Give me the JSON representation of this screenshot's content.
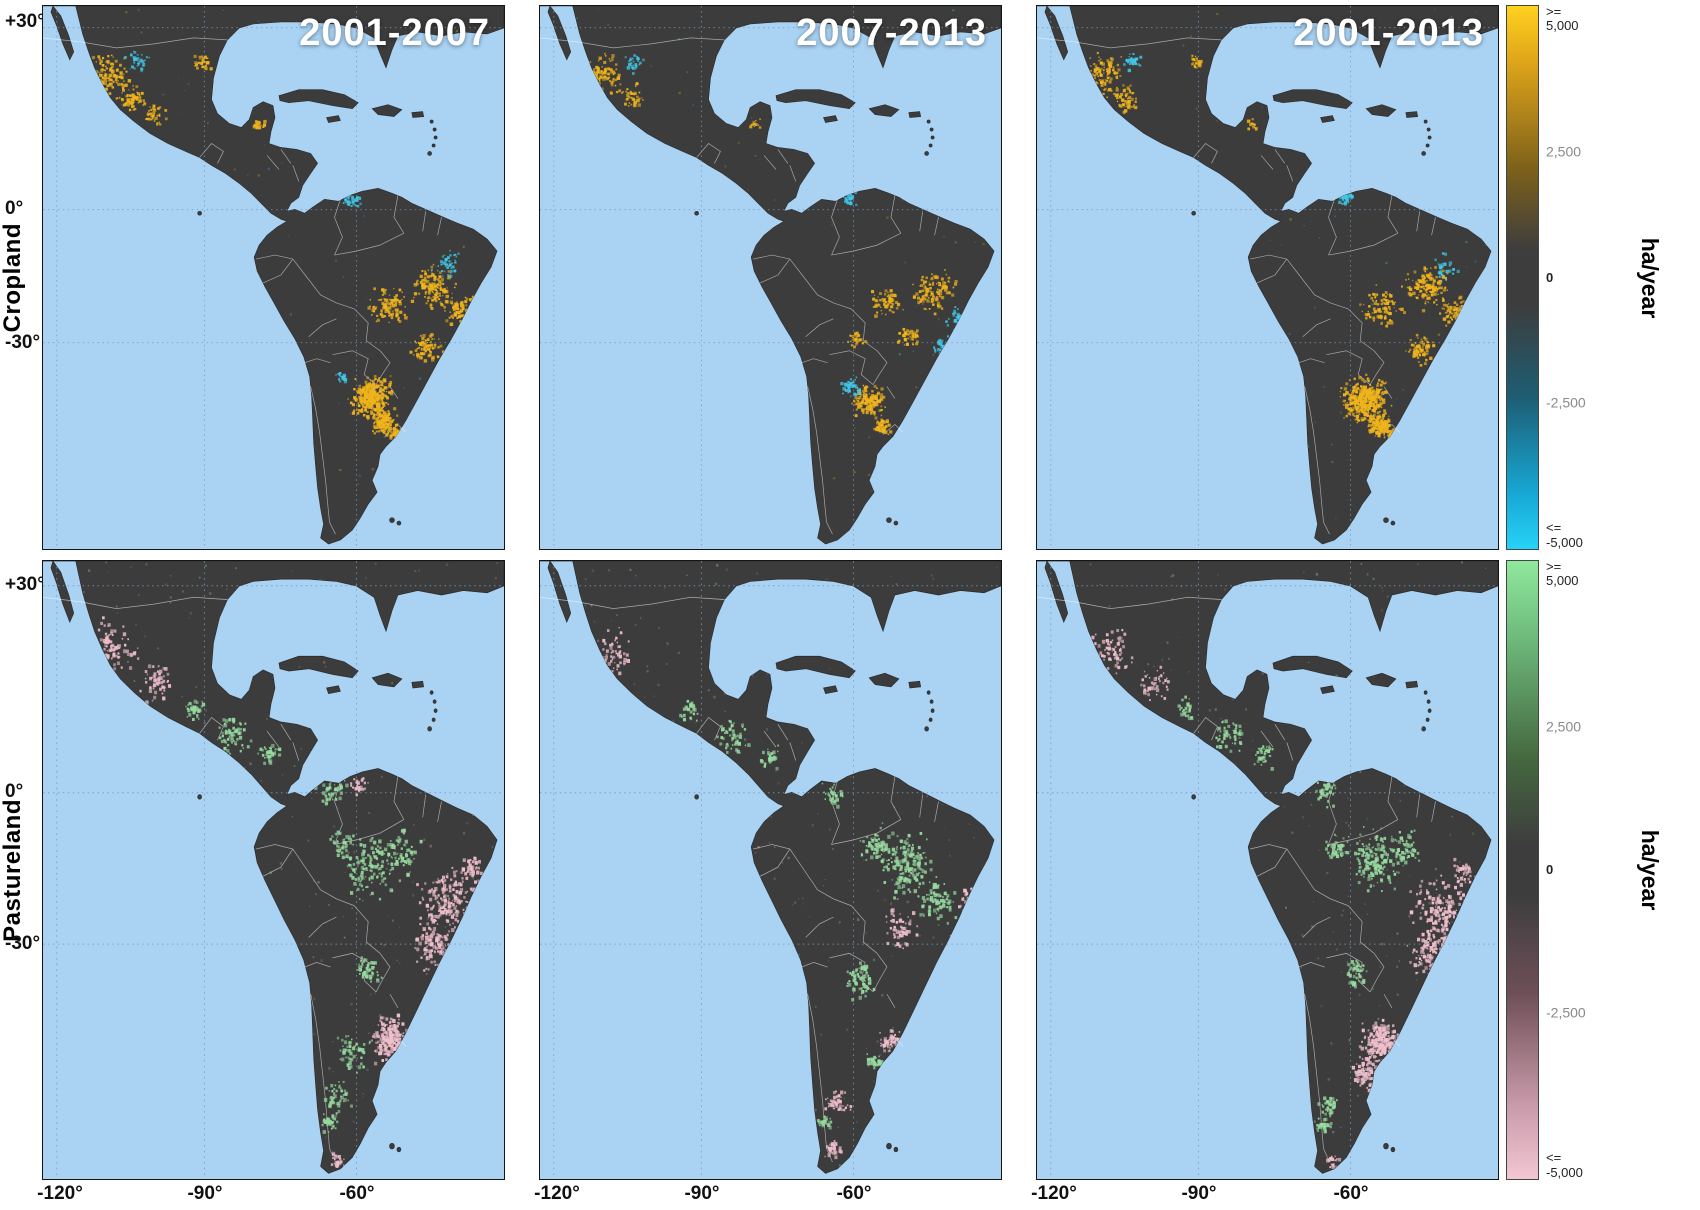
{
  "figure": {
    "rows": [
      {
        "label": "Cropland"
      },
      {
        "label": "Pastureland"
      }
    ],
    "col_titles": [
      "2001-2007",
      "2007-2013",
      "2001-2013"
    ],
    "lat_ticks": [
      "+30°",
      "0°",
      "-30°"
    ],
    "lon_ticks": [
      "-120°",
      "-90°",
      "-60°"
    ]
  },
  "colorbars": [
    {
      "row": "Cropland",
      "unit": "ha/year",
      "ticks": [
        ">=\n5,000",
        "2,500",
        "0",
        "-2,500",
        "<=\n-5,000"
      ],
      "gradient": [
        {
          "c": "#ffd21f",
          "p": 0
        },
        {
          "c": "#e0a61a",
          "p": 0.1
        },
        {
          "c": "#7d611a",
          "p": 0.3
        },
        {
          "c": "#3d3d3d",
          "p": 0.45
        },
        {
          "c": "#3d3d3d",
          "p": 0.55
        },
        {
          "c": "#1e5d73",
          "p": 0.72
        },
        {
          "c": "#17a9d6",
          "p": 0.9
        },
        {
          "c": "#27d2f7",
          "p": 1
        }
      ]
    },
    {
      "row": "Pastureland",
      "unit": "ha/year",
      "ticks": [
        ">=\n5,000",
        "2,500",
        "0",
        "-2,500",
        "<=\n-5,000"
      ],
      "gradient": [
        {
          "c": "#8fe89c",
          "p": 0
        },
        {
          "c": "#6fbc7d",
          "p": 0.12
        },
        {
          "c": "#44683f",
          "p": 0.32
        },
        {
          "c": "#3d3d3d",
          "p": 0.46
        },
        {
          "c": "#3d3d3d",
          "p": 0.54
        },
        {
          "c": "#6e4f58",
          "p": 0.7
        },
        {
          "c": "#c99aa9",
          "p": 0.88
        },
        {
          "c": "#f3c6d4",
          "p": 1
        }
      ]
    }
  ],
  "map": {
    "ocean": "#a9d2f3",
    "land": "#3c3c3c",
    "border_color": "#ffffff",
    "graticule_color": "#7898be",
    "colors": {
      "cg": "#f0b41c",
      "cl": "#41c7e8",
      "pg": "#97dba0",
      "pl": "#f0bfcd"
    }
  },
  "panels": [
    {
      "row": "Cropland",
      "period": "2001-2007",
      "seed": 1,
      "noise": 160,
      "hotspots": [
        [
          65,
          68,
          26,
          130,
          "cg"
        ],
        [
          88,
          92,
          18,
          70,
          "cg"
        ],
        [
          112,
          108,
          14,
          40,
          "cg"
        ],
        [
          95,
          55,
          14,
          35,
          "cl"
        ],
        [
          160,
          55,
          12,
          30,
          "cg"
        ],
        [
          216,
          118,
          9,
          18,
          "cg"
        ],
        [
          310,
          192,
          12,
          45,
          "cl"
        ],
        [
          348,
          300,
          26,
          110,
          "cg"
        ],
        [
          392,
          282,
          28,
          150,
          "cg"
        ],
        [
          420,
          305,
          20,
          80,
          "cg"
        ],
        [
          386,
          342,
          18,
          80,
          "cg"
        ],
        [
          330,
          392,
          26,
          380,
          "cg"
        ],
        [
          342,
          416,
          16,
          160,
          "cg"
        ],
        [
          356,
          428,
          10,
          50,
          "cg"
        ],
        [
          300,
          372,
          8,
          18,
          "cl"
        ],
        [
          408,
          258,
          22,
          40,
          "cl"
        ]
      ]
    },
    {
      "row": "Cropland",
      "period": "2007-2013",
      "seed": 2,
      "noise": 140,
      "hotspots": [
        [
          64,
          66,
          24,
          75,
          "cg"
        ],
        [
          90,
          90,
          16,
          40,
          "cg"
        ],
        [
          95,
          55,
          13,
          30,
          "cl"
        ],
        [
          216,
          118,
          8,
          12,
          "cg"
        ],
        [
          310,
          192,
          10,
          25,
          "cl"
        ],
        [
          348,
          296,
          20,
          65,
          "cg"
        ],
        [
          395,
          285,
          26,
          110,
          "cg"
        ],
        [
          424,
          315,
          18,
          70,
          "cl"
        ],
        [
          408,
          340,
          16,
          45,
          "cl"
        ],
        [
          372,
          330,
          14,
          40,
          "cg"
        ],
        [
          318,
          334,
          10,
          30,
          "cg"
        ],
        [
          330,
          395,
          22,
          140,
          "cg"
        ],
        [
          312,
          380,
          14,
          45,
          "cl"
        ],
        [
          344,
          420,
          12,
          55,
          "cg"
        ]
      ]
    },
    {
      "row": "Cropland",
      "period": "2001-2013",
      "seed": 3,
      "noise": 150,
      "hotspots": [
        [
          65,
          68,
          26,
          115,
          "cg"
        ],
        [
          88,
          92,
          18,
          60,
          "cg"
        ],
        [
          95,
          54,
          13,
          30,
          "cl"
        ],
        [
          160,
          55,
          11,
          25,
          "cg"
        ],
        [
          216,
          118,
          8,
          15,
          "cg"
        ],
        [
          310,
          192,
          11,
          40,
          "cl"
        ],
        [
          348,
          300,
          25,
          100,
          "cg"
        ],
        [
          392,
          282,
          28,
          140,
          "cg"
        ],
        [
          420,
          305,
          19,
          70,
          "cg"
        ],
        [
          386,
          344,
          17,
          70,
          "cg"
        ],
        [
          410,
          262,
          20,
          30,
          "cl"
        ],
        [
          330,
          394,
          28,
          430,
          "cg"
        ],
        [
          344,
          420,
          15,
          140,
          "cg"
        ],
        [
          356,
          430,
          9,
          40,
          "cg"
        ]
      ]
    },
    {
      "row": "Pastureland",
      "period": "2001-2007",
      "seed": 4,
      "noise": 420,
      "hotspots": [
        [
          70,
          75,
          28,
          85,
          "pl"
        ],
        [
          115,
          105,
          22,
          55,
          "pl"
        ],
        [
          150,
          130,
          15,
          35,
          "pg"
        ],
        [
          190,
          152,
          22,
          65,
          "pg"
        ],
        [
          228,
          170,
          14,
          40,
          "pg"
        ],
        [
          290,
          200,
          18,
          45,
          "pg"
        ],
        [
          318,
          196,
          13,
          28,
          "pl"
        ],
        [
          330,
          268,
          32,
          140,
          "pg"
        ],
        [
          362,
          255,
          22,
          70,
          "pg"
        ],
        [
          300,
          250,
          18,
          45,
          "pg"
        ],
        [
          408,
          298,
          36,
          180,
          "pl"
        ],
        [
          394,
          340,
          26,
          110,
          "pl"
        ],
        [
          430,
          270,
          16,
          45,
          "pl"
        ],
        [
          326,
          360,
          16,
          55,
          "pg"
        ],
        [
          350,
          420,
          24,
          220,
          "pl"
        ],
        [
          310,
          432,
          22,
          55,
          "pg"
        ],
        [
          296,
          470,
          18,
          45,
          "pg"
        ],
        [
          288,
          494,
          11,
          35,
          "pg"
        ],
        [
          296,
          528,
          9,
          25,
          "pl"
        ]
      ]
    },
    {
      "row": "Pastureland",
      "period": "2007-2013",
      "seed": 5,
      "noise": 420,
      "hotspots": [
        [
          74,
          80,
          24,
          55,
          "pl"
        ],
        [
          150,
          132,
          13,
          25,
          "pg"
        ],
        [
          194,
          155,
          20,
          50,
          "pg"
        ],
        [
          230,
          172,
          13,
          30,
          "pg"
        ],
        [
          295,
          205,
          15,
          35,
          "pg"
        ],
        [
          368,
          268,
          36,
          190,
          "pg"
        ],
        [
          338,
          250,
          22,
          70,
          "pg"
        ],
        [
          400,
          300,
          24,
          80,
          "pg"
        ],
        [
          434,
          300,
          16,
          70,
          "pl"
        ],
        [
          420,
          338,
          16,
          60,
          "pl"
        ],
        [
          362,
          322,
          22,
          65,
          "pl"
        ],
        [
          320,
          368,
          20,
          70,
          "pg"
        ],
        [
          352,
          424,
          13,
          55,
          "pl"
        ],
        [
          338,
          440,
          11,
          35,
          "pg"
        ],
        [
          300,
          478,
          16,
          50,
          "pl"
        ],
        [
          294,
          516,
          11,
          35,
          "pl"
        ],
        [
          286,
          494,
          9,
          25,
          "pg"
        ]
      ]
    },
    {
      "row": "Pastureland",
      "period": "2001-2013",
      "seed": 6,
      "noise": 440,
      "hotspots": [
        [
          74,
          78,
          26,
          70,
          "pl"
        ],
        [
          118,
          108,
          20,
          45,
          "pl"
        ],
        [
          150,
          130,
          14,
          30,
          "pg"
        ],
        [
          192,
          152,
          21,
          55,
          "pg"
        ],
        [
          228,
          170,
          13,
          35,
          "pg"
        ],
        [
          290,
          202,
          16,
          40,
          "pg"
        ],
        [
          338,
          264,
          34,
          160,
          "pg"
        ],
        [
          372,
          252,
          20,
          60,
          "pg"
        ],
        [
          300,
          252,
          16,
          40,
          "pg"
        ],
        [
          408,
          308,
          38,
          200,
          "pl"
        ],
        [
          394,
          348,
          26,
          110,
          "pl"
        ],
        [
          430,
          272,
          15,
          40,
          "pl"
        ],
        [
          322,
          362,
          15,
          45,
          "pg"
        ],
        [
          346,
          424,
          26,
          250,
          "pl"
        ],
        [
          330,
          452,
          18,
          90,
          "pl"
        ],
        [
          294,
          478,
          14,
          38,
          "pg"
        ],
        [
          297,
          528,
          9,
          22,
          "pl"
        ],
        [
          288,
          496,
          10,
          28,
          "pg"
        ]
      ]
    }
  ]
}
